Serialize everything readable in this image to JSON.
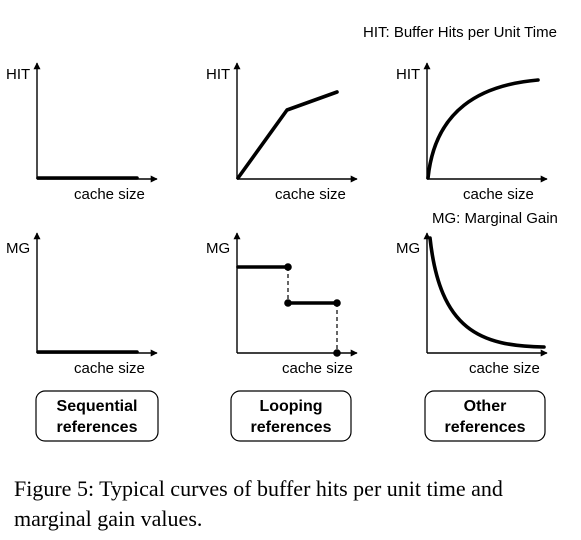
{
  "notes": {
    "hit_def": "HIT: Buffer Hits per Unit Time",
    "mg_def": "MG: Marginal Gain"
  },
  "axes": {
    "hit": "HIT",
    "mg": "MG",
    "cache_size": "cache size"
  },
  "panels": [
    {
      "label_line1": "Sequential",
      "label_line2": "references"
    },
    {
      "label_line1": "Looping",
      "label_line2": "references"
    },
    {
      "label_line1": "Other",
      "label_line2": "references"
    }
  ],
  "caption": "Figure 5:  Typical curves of buffer hits per unit time and marginal gain values."
}
